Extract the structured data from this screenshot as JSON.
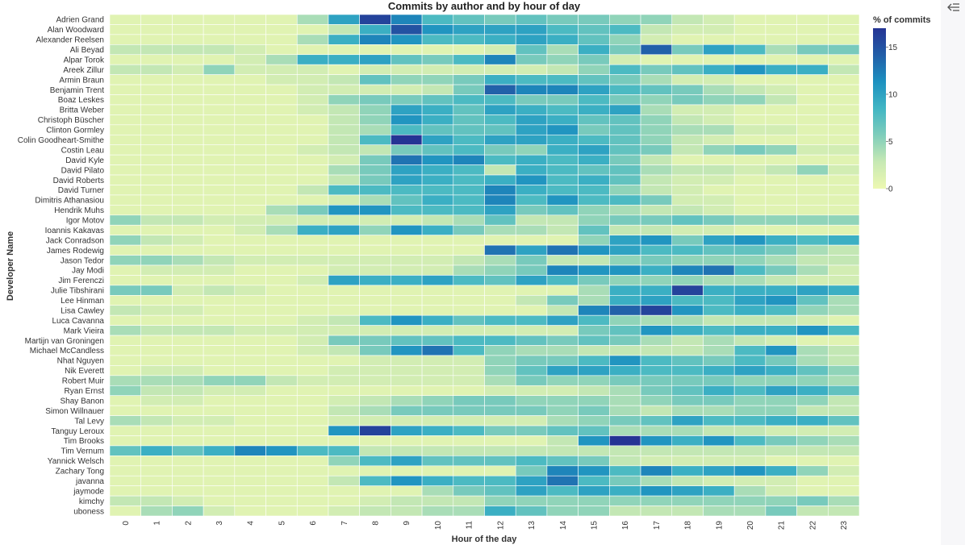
{
  "chart_data": {
    "type": "heatmap",
    "title": "Commits by author and by hour of day",
    "xlabel": "Hour of the day",
    "ylabel": "Developer Name",
    "x": [
      "0",
      "1",
      "2",
      "3",
      "4",
      "5",
      "6",
      "7",
      "8",
      "9",
      "10",
      "11",
      "12",
      "13",
      "14",
      "15",
      "16",
      "17",
      "18",
      "19",
      "20",
      "21",
      "22",
      "23"
    ],
    "y": [
      "Adrien Grand",
      "Alan Woodward",
      "Alexander Reelsen",
      "Ali Beyad",
      "Alpar Torok",
      "Areek Zillur",
      "Armin Braun",
      "Benjamin Trent",
      "Boaz Leskes",
      "Britta Weber",
      "Christoph Büscher",
      "Clinton Gormley",
      "Colin Goodheart-Smithe",
      "Costin Leau",
      "David Kyle",
      "David Pilato",
      "David Roberts",
      "David Turner",
      "Dimitris Athanasiou",
      "Hendrik Muhs",
      "Igor Motov",
      "Ioannis Kakavas",
      "Jack Conradson",
      "James Rodewig",
      "Jason Tedor",
      "Jay Modi",
      "Jim Ferenczi",
      "Julie Tibshirani",
      "Lee Hinman",
      "Lisa Cawley",
      "Luca Cavanna",
      "Mark Vieira",
      "Martijn van Groningen",
      "Michael McCandless",
      "Nhat Nguyen",
      "Nik Everett",
      "Robert Muir",
      "Ryan Ernst",
      "Shay Banon",
      "Simon Willnauer",
      "Tal Levy",
      "Tanguy Leroux",
      "Tim Brooks",
      "Tim Vernum",
      "Yannick Welsch",
      "Zachary Tong",
      "javanna",
      "jaymode",
      "kimchy",
      "uboness"
    ],
    "values": [
      [
        1,
        1,
        1,
        1,
        1,
        1,
        4,
        10,
        16,
        12,
        8,
        7,
        6,
        7,
        6,
        6,
        5,
        5,
        3,
        2,
        1,
        1,
        1,
        1
      ],
      [
        1,
        1,
        1,
        1,
        1,
        1,
        1,
        3,
        9,
        15,
        11,
        10,
        10,
        10,
        8,
        7,
        8,
        3,
        2,
        2,
        1,
        1,
        1,
        1
      ],
      [
        1,
        1,
        1,
        1,
        1,
        1,
        4,
        9,
        12,
        11,
        8,
        8,
        9,
        10,
        9,
        7,
        5,
        2,
        1,
        1,
        1,
        1,
        1,
        1
      ],
      [
        3,
        3,
        3,
        3,
        2,
        1,
        1,
        1,
        1,
        1,
        1,
        1,
        2,
        7,
        4,
        9,
        6,
        14,
        6,
        10,
        8,
        4,
        6,
        6
      ],
      [
        1,
        1,
        1,
        1,
        2,
        4,
        9,
        9,
        10,
        7,
        6,
        8,
        12,
        6,
        5,
        6,
        2,
        1,
        1,
        1,
        1,
        1,
        1,
        1
      ],
      [
        3,
        3,
        2,
        5,
        2,
        2,
        2,
        1,
        2,
        2,
        2,
        2,
        2,
        2,
        3,
        5,
        8,
        6,
        7,
        9,
        11,
        9,
        9,
        3
      ],
      [
        1,
        1,
        1,
        1,
        1,
        2,
        2,
        3,
        7,
        5,
        5,
        6,
        9,
        8,
        8,
        7,
        6,
        4,
        2,
        2,
        1,
        1,
        1,
        1
      ],
      [
        1,
        1,
        1,
        1,
        1,
        1,
        2,
        2,
        2,
        2,
        3,
        6,
        14,
        12,
        12,
        10,
        8,
        7,
        6,
        4,
        3,
        2,
        1,
        1
      ],
      [
        1,
        1,
        1,
        1,
        1,
        1,
        2,
        5,
        6,
        6,
        7,
        8,
        8,
        6,
        6,
        8,
        6,
        5,
        6,
        5,
        5,
        3,
        1,
        1
      ],
      [
        1,
        1,
        1,
        1,
        1,
        1,
        2,
        3,
        5,
        10,
        9,
        7,
        10,
        9,
        8,
        9,
        10,
        4,
        2,
        2,
        1,
        1,
        1,
        1
      ],
      [
        1,
        1,
        1,
        1,
        1,
        1,
        1,
        3,
        5,
        11,
        9,
        7,
        8,
        10,
        9,
        7,
        7,
        5,
        3,
        2,
        1,
        1,
        1,
        1
      ],
      [
        1,
        1,
        1,
        1,
        1,
        1,
        1,
        3,
        4,
        8,
        7,
        7,
        7,
        10,
        11,
        6,
        7,
        5,
        4,
        4,
        2,
        2,
        1,
        1
      ],
      [
        1,
        1,
        1,
        1,
        1,
        1,
        1,
        3,
        8,
        17,
        10,
        8,
        10,
        10,
        9,
        8,
        7,
        5,
        3,
        2,
        1,
        1,
        1,
        1
      ],
      [
        1,
        1,
        1,
        1,
        1,
        1,
        2,
        3,
        3,
        6,
        7,
        8,
        6,
        5,
        9,
        10,
        7,
        6,
        3,
        5,
        6,
        5,
        2,
        2
      ],
      [
        1,
        1,
        1,
        1,
        1,
        1,
        1,
        2,
        6,
        13,
        11,
        12,
        8,
        9,
        8,
        9,
        6,
        3,
        1,
        1,
        1,
        1,
        1,
        1
      ],
      [
        1,
        1,
        1,
        1,
        1,
        1,
        1,
        4,
        6,
        10,
        9,
        8,
        3,
        9,
        8,
        7,
        7,
        4,
        3,
        3,
        2,
        3,
        5,
        2
      ],
      [
        1,
        1,
        1,
        1,
        1,
        1,
        1,
        3,
        6,
        10,
        9,
        8,
        9,
        11,
        8,
        9,
        7,
        3,
        2,
        2,
        1,
        1,
        1,
        1
      ],
      [
        1,
        1,
        1,
        1,
        1,
        1,
        3,
        8,
        8,
        8,
        8,
        8,
        12,
        9,
        8,
        8,
        5,
        3,
        2,
        1,
        1,
        1,
        1,
        1
      ],
      [
        1,
        1,
        1,
        1,
        1,
        1,
        1,
        2,
        4,
        7,
        9,
        8,
        12,
        8,
        11,
        8,
        8,
        6,
        2,
        2,
        1,
        1,
        1,
        1
      ],
      [
        1,
        1,
        1,
        1,
        1,
        4,
        6,
        11,
        11,
        8,
        8,
        8,
        10,
        6,
        7,
        5,
        4,
        3,
        3,
        2,
        1,
        1,
        1,
        1
      ],
      [
        5,
        3,
        3,
        2,
        2,
        2,
        2,
        2,
        2,
        2,
        3,
        4,
        7,
        3,
        3,
        5,
        6,
        6,
        7,
        6,
        5,
        5,
        5,
        5
      ],
      [
        1,
        1,
        1,
        1,
        2,
        4,
        9,
        10,
        5,
        11,
        9,
        6,
        4,
        4,
        3,
        7,
        3,
        3,
        2,
        2,
        1,
        1,
        1,
        1
      ],
      [
        5,
        3,
        2,
        1,
        1,
        1,
        1,
        1,
        1,
        1,
        1,
        1,
        1,
        1,
        1,
        5,
        10,
        11,
        6,
        10,
        11,
        9,
        8,
        9
      ],
      [
        1,
        1,
        1,
        1,
        1,
        1,
        1,
        1,
        1,
        1,
        1,
        1,
        13,
        10,
        13,
        11,
        10,
        8,
        8,
        7,
        7,
        6,
        4,
        3
      ],
      [
        5,
        5,
        4,
        3,
        2,
        2,
        2,
        2,
        2,
        2,
        2,
        3,
        4,
        6,
        3,
        3,
        5,
        6,
        5,
        5,
        5,
        4,
        3,
        3
      ],
      [
        1,
        2,
        2,
        2,
        1,
        1,
        1,
        2,
        2,
        2,
        2,
        4,
        5,
        6,
        12,
        11,
        11,
        9,
        12,
        13,
        8,
        6,
        4,
        2
      ],
      [
        1,
        1,
        1,
        1,
        1,
        1,
        2,
        10,
        9,
        9,
        10,
        8,
        7,
        10,
        8,
        6,
        5,
        5,
        5,
        4,
        4,
        3,
        2,
        2
      ],
      [
        6,
        6,
        2,
        3,
        2,
        1,
        1,
        1,
        1,
        1,
        1,
        1,
        1,
        1,
        1,
        4,
        9,
        9,
        16,
        9,
        9,
        9,
        10,
        9
      ],
      [
        1,
        1,
        1,
        1,
        1,
        1,
        1,
        1,
        1,
        1,
        1,
        1,
        1,
        3,
        6,
        4,
        9,
        10,
        8,
        8,
        10,
        11,
        7,
        4
      ],
      [
        3,
        2,
        2,
        1,
        1,
        1,
        1,
        1,
        1,
        1,
        1,
        1,
        1,
        1,
        3,
        12,
        14,
        16,
        11,
        8,
        9,
        8,
        5,
        4
      ],
      [
        1,
        1,
        1,
        1,
        1,
        1,
        2,
        3,
        8,
        11,
        9,
        7,
        8,
        8,
        10,
        8,
        5,
        4,
        4,
        3,
        3,
        3,
        2,
        1
      ],
      [
        4,
        3,
        3,
        3,
        2,
        2,
        2,
        2,
        2,
        2,
        2,
        2,
        2,
        2,
        2,
        6,
        7,
        11,
        9,
        8,
        9,
        9,
        11,
        8
      ],
      [
        1,
        1,
        1,
        1,
        1,
        1,
        2,
        6,
        6,
        7,
        7,
        8,
        8,
        7,
        6,
        7,
        6,
        4,
        3,
        4,
        3,
        2,
        1,
        1
      ],
      [
        1,
        1,
        1,
        1,
        1,
        1,
        2,
        3,
        6,
        11,
        13,
        8,
        5,
        4,
        4,
        3,
        3,
        3,
        3,
        4,
        8,
        11,
        4,
        3
      ],
      [
        1,
        1,
        1,
        1,
        1,
        1,
        1,
        1,
        2,
        2,
        2,
        2,
        5,
        6,
        6,
        8,
        11,
        8,
        7,
        6,
        8,
        6,
        4,
        3
      ],
      [
        1,
        2,
        2,
        1,
        1,
        1,
        1,
        2,
        2,
        2,
        2,
        2,
        5,
        7,
        10,
        10,
        9,
        8,
        8,
        9,
        10,
        9,
        7,
        5
      ],
      [
        4,
        4,
        4,
        5,
        5,
        3,
        2,
        2,
        2,
        2,
        2,
        2,
        4,
        6,
        5,
        5,
        6,
        6,
        6,
        6,
        5,
        5,
        5,
        4
      ],
      [
        5,
        3,
        3,
        2,
        2,
        1,
        1,
        1,
        1,
        1,
        1,
        1,
        2,
        2,
        2,
        3,
        4,
        6,
        7,
        9,
        8,
        10,
        9,
        7
      ],
      [
        1,
        2,
        2,
        1,
        1,
        1,
        1,
        2,
        3,
        4,
        5,
        6,
        6,
        5,
        5,
        5,
        4,
        5,
        6,
        6,
        5,
        5,
        5,
        3
      ],
      [
        1,
        1,
        1,
        1,
        1,
        1,
        1,
        3,
        4,
        6,
        6,
        6,
        6,
        6,
        5,
        6,
        4,
        3,
        4,
        4,
        5,
        5,
        3,
        3
      ],
      [
        4,
        3,
        2,
        2,
        1,
        1,
        1,
        2,
        2,
        2,
        2,
        2,
        2,
        2,
        4,
        5,
        6,
        7,
        10,
        8,
        8,
        9,
        9,
        7
      ],
      [
        1,
        1,
        1,
        1,
        1,
        1,
        1,
        11,
        16,
        10,
        9,
        8,
        6,
        6,
        7,
        7,
        4,
        4,
        4,
        3,
        3,
        2,
        2,
        2
      ],
      [
        1,
        1,
        1,
        1,
        1,
        1,
        1,
        1,
        1,
        1,
        1,
        1,
        1,
        1,
        3,
        11,
        17,
        11,
        9,
        11,
        8,
        6,
        5,
        4
      ],
      [
        7,
        9,
        7,
        9,
        12,
        11,
        8,
        8,
        3,
        3,
        3,
        3,
        3,
        3,
        3,
        3,
        3,
        3,
        3,
        3,
        3,
        3,
        3,
        3
      ],
      [
        1,
        1,
        1,
        1,
        1,
        1,
        1,
        5,
        8,
        10,
        7,
        7,
        7,
        8,
        7,
        6,
        3,
        2,
        2,
        2,
        2,
        1,
        1,
        1
      ],
      [
        1,
        1,
        1,
        1,
        1,
        1,
        1,
        1,
        1,
        1,
        1,
        1,
        1,
        6,
        12,
        11,
        8,
        12,
        9,
        10,
        11,
        9,
        5,
        2
      ],
      [
        1,
        1,
        1,
        1,
        1,
        1,
        1,
        3,
        8,
        11,
        9,
        8,
        8,
        10,
        13,
        8,
        6,
        4,
        3,
        2,
        2,
        2,
        1,
        1
      ],
      [
        1,
        1,
        1,
        1,
        1,
        1,
        1,
        1,
        1,
        1,
        4,
        6,
        7,
        10,
        8,
        10,
        9,
        11,
        10,
        9,
        4,
        2,
        1,
        1
      ],
      [
        3,
        3,
        2,
        1,
        1,
        1,
        1,
        1,
        2,
        3,
        3,
        3,
        5,
        5,
        5,
        5,
        5,
        5,
        5,
        5,
        5,
        5,
        6,
        4
      ],
      [
        1,
        4,
        5,
        2,
        1,
        1,
        1,
        2,
        3,
        3,
        4,
        4,
        9,
        7,
        5,
        5,
        3,
        3,
        3,
        4,
        4,
        6,
        3,
        3
      ]
    ],
    "colorbar": {
      "title": "% of commits",
      "ticks": [
        0,
        5,
        10,
        15
      ],
      "range": [
        0,
        17
      ],
      "colors": [
        "#edf8b1",
        "#c7e9b4",
        "#7fcdbb",
        "#41b6c4",
        "#1d91c0",
        "#225ea8",
        "#253494"
      ]
    },
    "grid": false,
    "legend_position": "right"
  },
  "menu": {
    "icon": "collapse-menu-icon"
  }
}
